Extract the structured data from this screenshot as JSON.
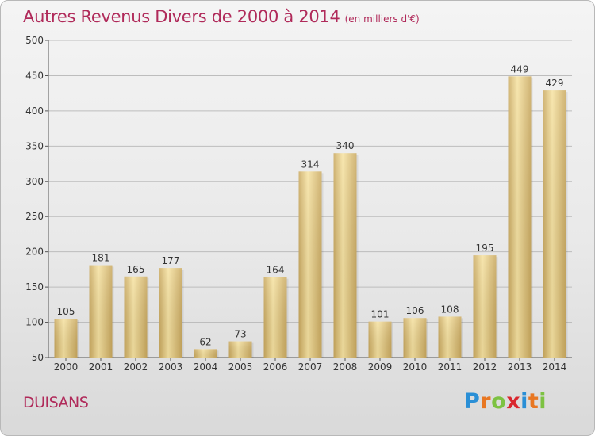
{
  "header": {
    "title": "Autres Revenus Divers de 2000 à 2014",
    "unit": "(en milliers d'€)"
  },
  "footer": {
    "town": "DUISANS",
    "logo_letters": [
      "P",
      "r",
      "o",
      "x",
      "i",
      "t",
      "i"
    ],
    "logo_colors": [
      "#2a8fd6",
      "#e87722",
      "#7dc242",
      "#d9272e",
      "#2a8fd6",
      "#e87722",
      "#7dc242"
    ]
  },
  "colors": {
    "title": "#b02a5a",
    "bar_light": "#f6e2a1",
    "bar_dark": "#c9a85e",
    "grid": "#bdbdbd"
  },
  "chart_data": {
    "type": "bar",
    "categories": [
      "2000",
      "2001",
      "2002",
      "2003",
      "2004",
      "2005",
      "2006",
      "2007",
      "2008",
      "2009",
      "2010",
      "2011",
      "2012",
      "2013",
      "2014"
    ],
    "values": [
      105,
      181,
      165,
      177,
      62,
      73,
      164,
      314,
      340,
      101,
      106,
      108,
      195,
      449,
      429
    ],
    "title": "Autres Revenus Divers de 2000 à 2014",
    "ylim": [
      50,
      500
    ],
    "yticks": [
      50,
      100,
      150,
      200,
      250,
      300,
      350,
      400,
      450,
      500
    ],
    "grid": true,
    "data_labels": true
  }
}
